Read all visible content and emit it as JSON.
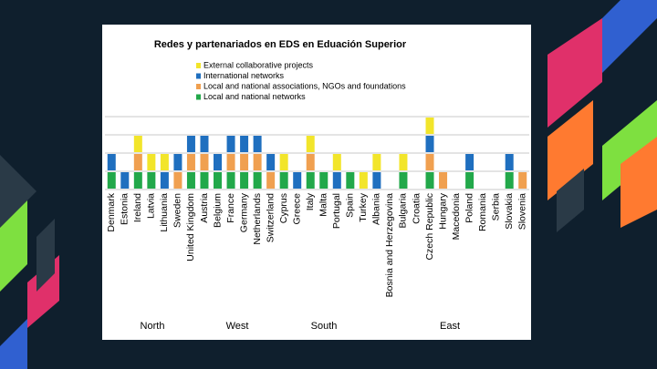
{
  "chart_data": {
    "type": "bar",
    "stacked": true,
    "title": "Redes y partenariados en EDS en Eduación Superior",
    "categories": [
      "Denmark",
      "Estonia",
      "Ireland",
      "Latvia",
      "Lithuania",
      "Sweden",
      "United Kingdom",
      "Austria",
      "Belgium",
      "France",
      "Germany",
      "Netherlands",
      "Switzerland",
      "Cyprus",
      "Greece",
      "Italy",
      "Malta",
      "Portugal",
      "Spain",
      "Turkey",
      "Albania",
      "Bosnia and Herzegovina",
      "Bulgaria",
      "Croatia",
      "Czech Republic",
      "Hungary",
      "Macedonia",
      "Poland",
      "Romania",
      "Serbia",
      "Slovakia",
      "Slovenia"
    ],
    "groups": [
      "North",
      "West",
      "South",
      "East"
    ],
    "series": [
      {
        "name": "Local and national networks",
        "color": "#22a84a",
        "values": [
          1,
          0,
          1,
          1,
          0,
          0,
          1,
          1,
          1,
          1,
          1,
          1,
          0,
          1,
          0,
          1,
          1,
          0,
          1,
          0,
          0,
          0,
          1,
          0,
          1,
          0,
          0,
          1,
          0,
          0,
          1,
          0
        ]
      },
      {
        "name": "Local and national associations, NGOs and foundations",
        "color": "#f0a050",
        "values": [
          0,
          0,
          1,
          0,
          0,
          1,
          1,
          1,
          0,
          1,
          1,
          1,
          1,
          0,
          0,
          1,
          0,
          0,
          0,
          0,
          0,
          0,
          0,
          0,
          1,
          1,
          0,
          0,
          0,
          0,
          0,
          1
        ]
      },
      {
        "name": "International networks",
        "color": "#1f6fbf",
        "values": [
          1,
          1,
          0,
          0,
          1,
          1,
          1,
          1,
          1,
          1,
          1,
          1,
          1,
          0,
          1,
          0,
          0,
          1,
          0,
          0,
          1,
          0,
          0,
          0,
          1,
          0,
          0,
          1,
          0,
          0,
          1,
          0
        ]
      },
      {
        "name": "External collaborative projects",
        "color": "#f2e52a",
        "values": [
          0,
          0,
          1,
          1,
          1,
          0,
          0,
          0,
          0,
          0,
          0,
          0,
          0,
          1,
          0,
          1,
          0,
          1,
          0,
          1,
          1,
          0,
          1,
          0,
          1,
          0,
          0,
          0,
          0,
          0,
          0,
          0
        ]
      }
    ],
    "ylim": [
      0,
      4
    ],
    "yticks": [
      0,
      1,
      2,
      3,
      4
    ],
    "grid": true
  }
}
